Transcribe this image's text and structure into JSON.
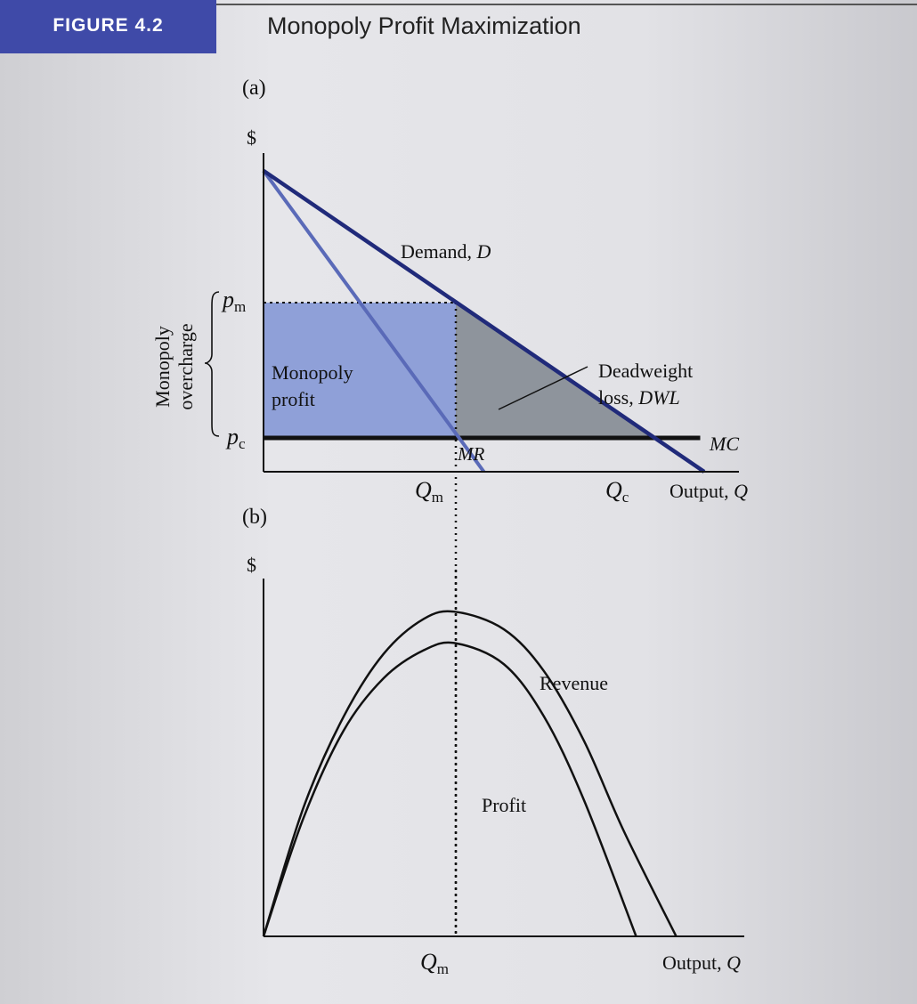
{
  "figure": {
    "label": "FIGURE 4.2",
    "title": "Monopoly Profit Maximization"
  },
  "colors": {
    "demand_line": "#202a7a",
    "mr_line": "#5a6ab8",
    "profit_fill": "#8fa0d8",
    "dwl_fill": "#8e949c",
    "mc_line": "#111111",
    "header_bg": "#3f4aa8"
  },
  "chart_data": [
    {
      "type": "line",
      "panel": "(a)",
      "y_axis_label": "$",
      "x_axis_label": "Output, Q",
      "x_ticks": [
        "Q_m",
        "Q_c"
      ],
      "y_ticks": [
        "p_m",
        "p_c"
      ],
      "xlim": [
        0,
        12
      ],
      "ylim": [
        0,
        10
      ],
      "series": [
        {
          "name": "Demand, D",
          "x": [
            0,
            11.0
          ],
          "y": [
            8.9,
            0
          ]
        },
        {
          "name": "MR",
          "x": [
            0,
            5.5
          ],
          "y": [
            8.9,
            0
          ]
        },
        {
          "name": "MC",
          "x": [
            0,
            10.9
          ],
          "y": [
            1.0,
            1.0
          ]
        }
      ],
      "points": {
        "Q_m": 4.8,
        "Q_c": 9.8,
        "p_m": 5.0,
        "p_c": 1.0
      },
      "regions": [
        {
          "name": "Monopoly profit",
          "label_lines": [
            "Monopoly",
            "profit"
          ]
        },
        {
          "name": "Deadweight loss, DWL",
          "label_lines": [
            "Deadweight",
            "loss, DWL"
          ]
        }
      ],
      "brace_label_lines": [
        "Monopoly",
        "overcharge"
      ]
    },
    {
      "type": "line",
      "panel": "(b)",
      "y_axis_label": "$",
      "x_axis_label": "Output, Q",
      "x_ticks": [
        "Q_m"
      ],
      "xlim": [
        0,
        12
      ],
      "ylim": [
        0,
        10
      ],
      "series": [
        {
          "name": "Revenue",
          "x": [
            0,
            1,
            2,
            3,
            4,
            4.8,
            6,
            7,
            8,
            9,
            10.3
          ],
          "y": [
            0,
            3.7,
            6.3,
            8.1,
            9.1,
            9.3,
            8.8,
            7.6,
            5.6,
            3.0,
            0
          ]
        },
        {
          "name": "Profit",
          "x": [
            0,
            1,
            2,
            3,
            4,
            4.8,
            6,
            7,
            8,
            9.3
          ],
          "y": [
            0,
            3.4,
            5.9,
            7.4,
            8.2,
            8.4,
            7.8,
            6.3,
            3.9,
            0
          ]
        }
      ]
    }
  ],
  "panel_a": {
    "tag": "(a)",
    "dollar": "$",
    "pm_main": "p",
    "pm_sub": "m",
    "pc_main": "p",
    "pc_sub": "c",
    "qm_main": "Q",
    "qm_sub": "m",
    "qc_main": "Q",
    "qc_sub": "c",
    "demand_label": "Demand, ",
    "demand_sym": "D",
    "mr_label": "MR",
    "mc_label": "MC",
    "profit_l1": "Monopoly",
    "profit_l2": "profit",
    "dwl_l1": "Deadweight",
    "dwl_l2": "loss, ",
    "dwl_sym": "DWL",
    "over_l1": "Monopoly",
    "over_l2": "overcharge",
    "output_label": "Output, ",
    "output_sym": "Q"
  },
  "panel_b": {
    "tag": "(b)",
    "dollar": "$",
    "qm_main": "Q",
    "qm_sub": "m",
    "revenue_label": "Revenue",
    "profit_label": "Profit",
    "output_label": "Output, ",
    "output_sym": "Q"
  }
}
